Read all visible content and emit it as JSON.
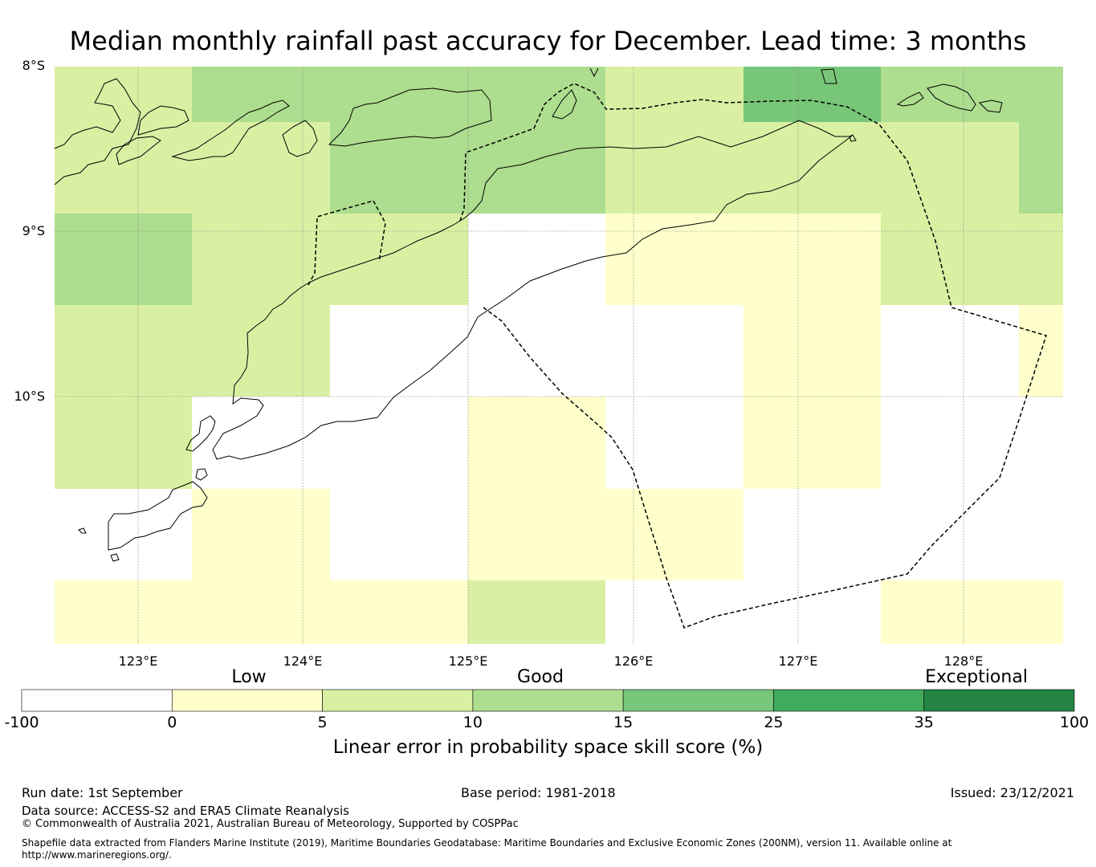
{
  "title": "Median monthly rainfall past accuracy for December. Lead time: 3 months",
  "map": {
    "lat_labels": [
      "8°S",
      "9°S",
      "10°S"
    ],
    "lon_labels": [
      "123°E",
      "124°E",
      "125°E",
      "126°E",
      "127°E",
      "128°E"
    ]
  },
  "colorbar": {
    "category_labels": [
      "Low",
      "Good",
      "Exceptional"
    ],
    "tick_labels": [
      "-100",
      "0",
      "5",
      "10",
      "15",
      "25",
      "35",
      "100"
    ],
    "colors": [
      "#ffffff",
      "#ffffcc",
      "#d9f0a3",
      "#addd8e",
      "#78c679",
      "#41ab5d",
      "#238443"
    ],
    "title": "Linear error in probability space skill score (%)"
  },
  "chart_data": {
    "type": "heatmap",
    "title": "Median monthly rainfall past accuracy for December. Lead time: 3 months",
    "legend_title": "Linear error in probability space skill score (%)",
    "color_bins": [
      -100,
      0,
      5,
      10,
      15,
      25,
      35,
      100
    ],
    "color_categories": [
      "Low",
      "Good",
      "Exceptional"
    ],
    "x_ticks": [
      "123°E",
      "124°E",
      "125°E",
      "126°E",
      "127°E",
      "128°E"
    ],
    "y_ticks": [
      "8°S",
      "9°S",
      "10°S"
    ],
    "grid_class_rows_north_to_south": [
      [
        2,
        3,
        3,
        3,
        2,
        4,
        3,
        3
      ],
      [
        2,
        2,
        3,
        3,
        2,
        2,
        2,
        3
      ],
      [
        3,
        2,
        2,
        0,
        1,
        1,
        2,
        2
      ],
      [
        2,
        2,
        0,
        0,
        0,
        1,
        0,
        1
      ],
      [
        2,
        0,
        0,
        1,
        0,
        1,
        0,
        0
      ],
      [
        0,
        1,
        0,
        1,
        1,
        0,
        0,
        0
      ],
      [
        1,
        1,
        1,
        2,
        0,
        0,
        1,
        1
      ]
    ],
    "grid_class_note": "index into color_bins intervals"
  },
  "footer": {
    "run_date": "Run date: 1st September",
    "base_period": "Base period: 1981-2018",
    "issued": "Issued: 23/12/2021",
    "data_source": "Data source: ACCESS-S2 and ERA5 Climate Reanalysis",
    "copyright": "© Commonwealth of Australia 2021, Australian Bureau of Meteorology, Supported by COSPPac",
    "shapefile_line1": "Shapefile data extracted from Flanders Marine Institute (2019), Maritime Boundaries Geodatabase: Maritime Boundaries and Exclusive Economic Zones (200NM), version 11. Available online at",
    "shapefile_line2": "http://www.marineregions.org/."
  }
}
